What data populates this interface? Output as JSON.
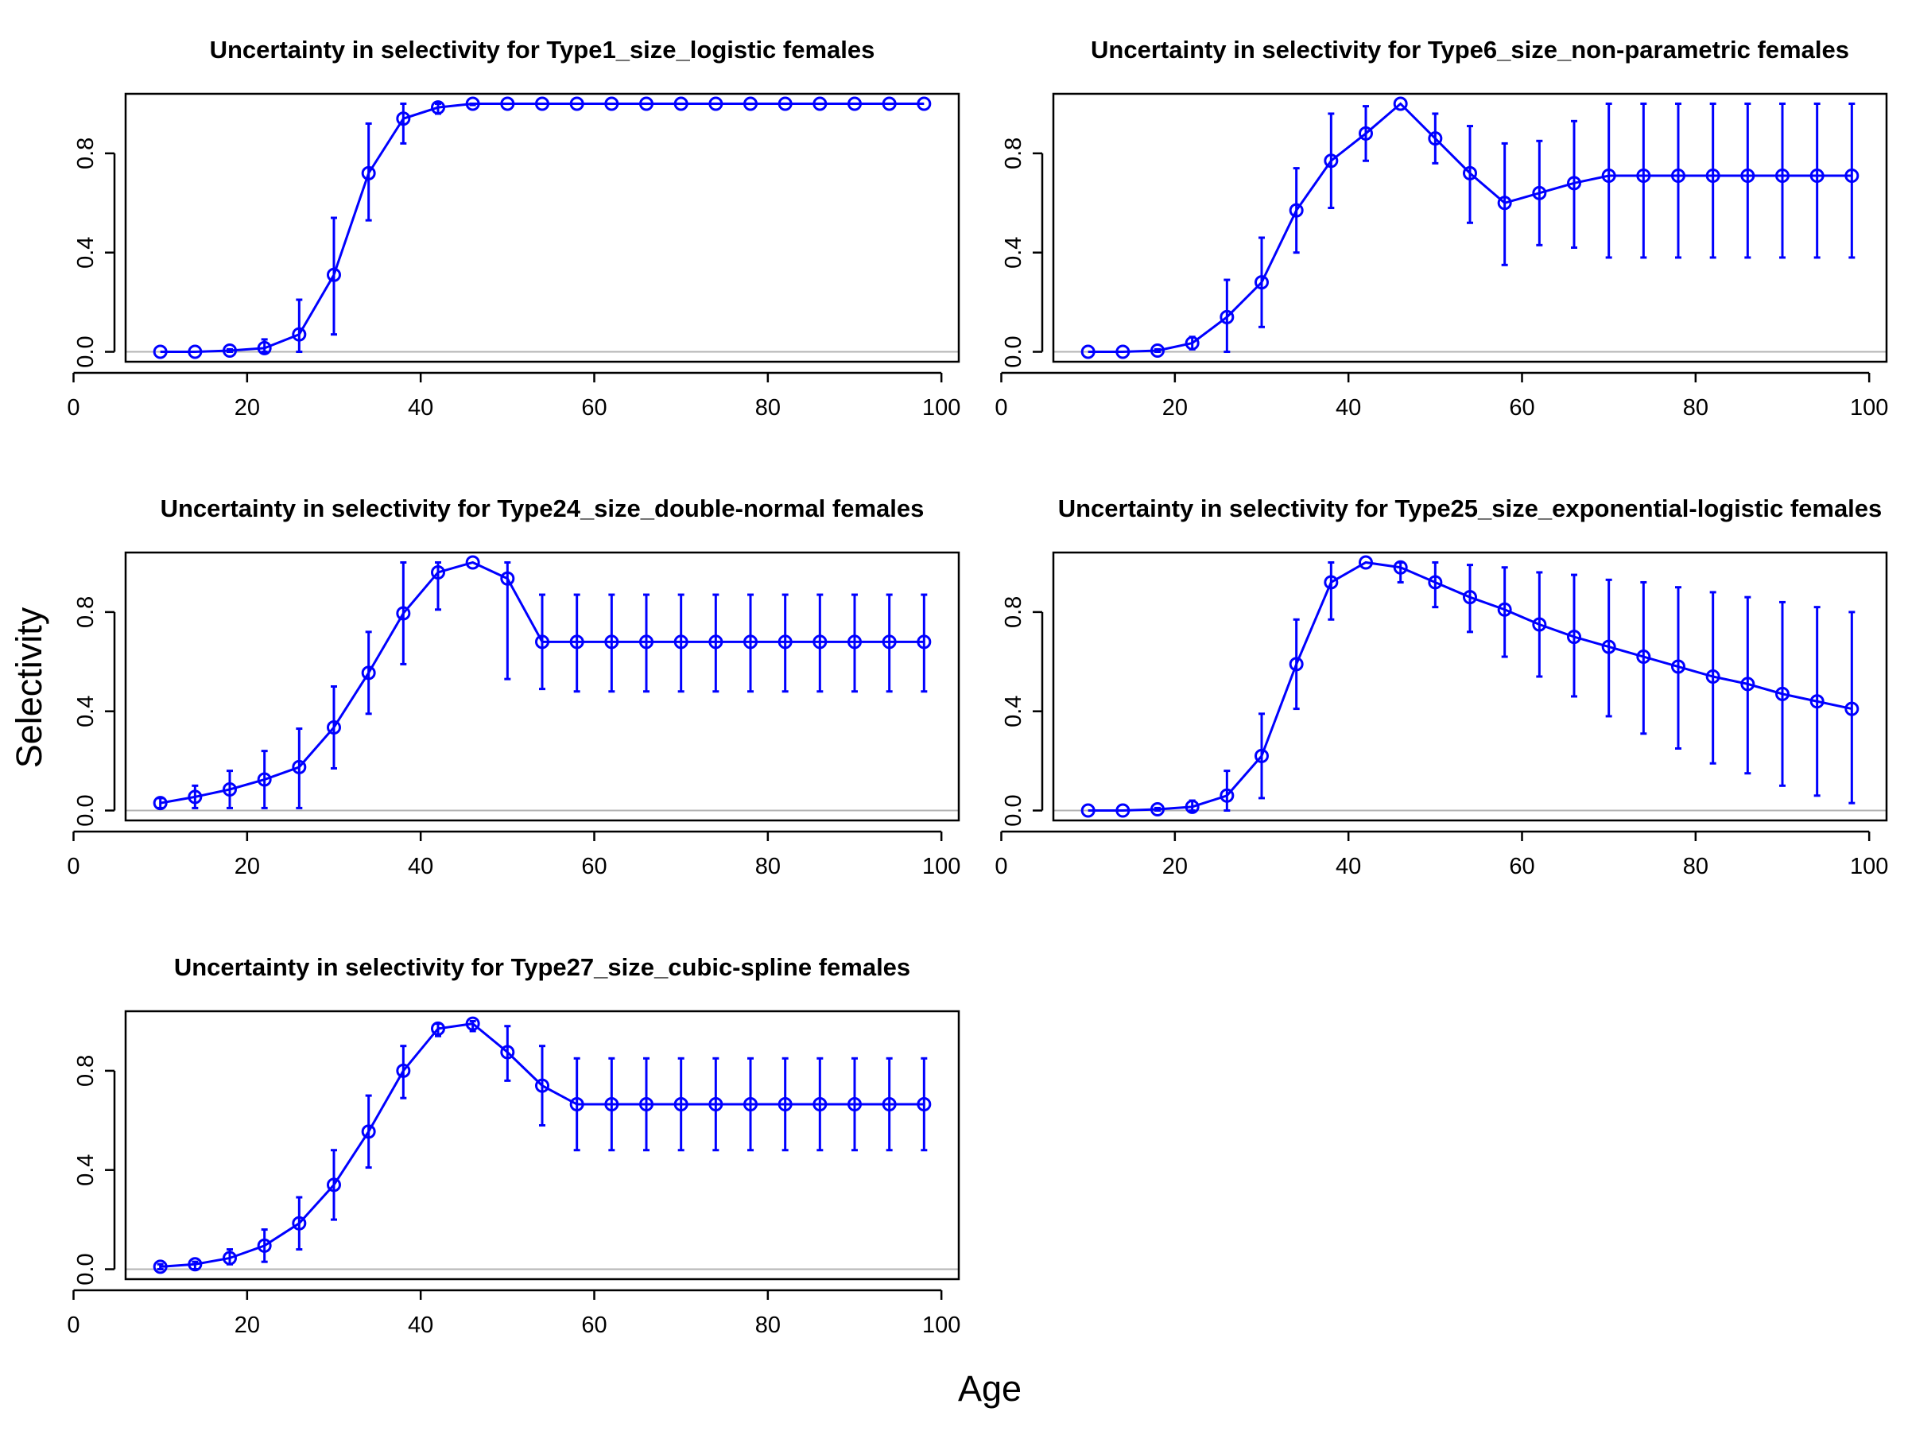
{
  "xlabel": "Age",
  "ylabel": "Selectivity",
  "line_color": "#0000ff",
  "reference_line_color": "#b3b3b3",
  "chart_data": [
    {
      "type": "line",
      "title": "Uncertainty in selectivity for Type1_size_logistic females",
      "xlim": [
        0,
        100
      ],
      "ylim": [
        0,
        1
      ],
      "x_ticks": [
        0,
        20,
        40,
        60,
        80,
        100
      ],
      "y_ticks": [
        0.0,
        0.4,
        0.8
      ],
      "y_tick_labels": [
        "0.0",
        "0.4",
        "0.8"
      ],
      "grid": false,
      "x": [
        10,
        14,
        18,
        22,
        26,
        30,
        34,
        38,
        42,
        46,
        50,
        54,
        58,
        62,
        66,
        70,
        74,
        78,
        82,
        86,
        90,
        94,
        98
      ],
      "values": [
        0.0,
        0.0,
        0.005,
        0.015,
        0.07,
        0.31,
        0.72,
        0.94,
        0.985,
        1.0,
        1.0,
        1.0,
        1.0,
        1.0,
        1.0,
        1.0,
        1.0,
        1.0,
        1.0,
        1.0,
        1.0,
        1.0,
        1.0
      ],
      "lower": [
        0.0,
        0.0,
        0.0,
        0.0,
        0.0,
        0.07,
        0.53,
        0.84,
        0.96,
        0.995,
        1.0,
        1.0,
        1.0,
        1.0,
        1.0,
        1.0,
        1.0,
        1.0,
        1.0,
        1.0,
        1.0,
        1.0,
        1.0
      ],
      "upper": [
        0.0,
        0.0,
        0.01,
        0.05,
        0.21,
        0.54,
        0.92,
        1.0,
        1.0,
        1.0,
        1.0,
        1.0,
        1.0,
        1.0,
        1.0,
        1.0,
        1.0,
        1.0,
        1.0,
        1.0,
        1.0,
        1.0,
        1.0
      ]
    },
    {
      "type": "line",
      "title": "Uncertainty in selectivity for Type6_size_non-parametric females",
      "xlim": [
        0,
        100
      ],
      "ylim": [
        0,
        1
      ],
      "x_ticks": [
        0,
        20,
        40,
        60,
        80,
        100
      ],
      "y_ticks": [
        0.0,
        0.4,
        0.8
      ],
      "y_tick_labels": [
        "0.0",
        "0.4",
        "0.8"
      ],
      "grid": false,
      "x": [
        10,
        14,
        18,
        22,
        26,
        30,
        34,
        38,
        42,
        46,
        50,
        54,
        58,
        62,
        66,
        70,
        74,
        78,
        82,
        86,
        90,
        94,
        98
      ],
      "values": [
        0.0,
        0.0,
        0.005,
        0.035,
        0.14,
        0.28,
        0.57,
        0.77,
        0.88,
        1.0,
        0.86,
        0.72,
        0.6,
        0.64,
        0.68,
        0.71,
        0.71,
        0.71,
        0.71,
        0.71,
        0.71,
        0.71,
        0.71
      ],
      "lower": [
        0.0,
        0.0,
        0.0,
        0.01,
        0.0,
        0.1,
        0.4,
        0.58,
        0.77,
        1.0,
        0.76,
        0.52,
        0.35,
        0.43,
        0.42,
        0.38,
        0.38,
        0.38,
        0.38,
        0.38,
        0.38,
        0.38,
        0.38
      ],
      "upper": [
        0.0,
        0.0,
        0.01,
        0.06,
        0.29,
        0.46,
        0.74,
        0.96,
        0.99,
        1.0,
        0.96,
        0.91,
        0.84,
        0.85,
        0.93,
        1.0,
        1.0,
        1.0,
        1.0,
        1.0,
        1.0,
        1.0,
        1.0
      ]
    },
    {
      "type": "line",
      "title": "Uncertainty in selectivity for Type24_size_double-normal females",
      "xlim": [
        0,
        100
      ],
      "ylim": [
        0,
        1
      ],
      "x_ticks": [
        0,
        20,
        40,
        60,
        80,
        100
      ],
      "y_ticks": [
        0.0,
        0.4,
        0.8
      ],
      "y_tick_labels": [
        "0.0",
        "0.4",
        "0.8"
      ],
      "grid": false,
      "x": [
        10,
        14,
        18,
        22,
        26,
        30,
        34,
        38,
        42,
        46,
        50,
        54,
        58,
        62,
        66,
        70,
        74,
        78,
        82,
        86,
        90,
        94,
        98
      ],
      "values": [
        0.03,
        0.055,
        0.085,
        0.125,
        0.175,
        0.335,
        0.555,
        0.795,
        0.96,
        1.0,
        0.935,
        0.68,
        0.68,
        0.68,
        0.68,
        0.68,
        0.68,
        0.68,
        0.68,
        0.68,
        0.68,
        0.68,
        0.68
      ],
      "lower": [
        0.01,
        0.01,
        0.01,
        0.01,
        0.01,
        0.17,
        0.39,
        0.59,
        0.81,
        1.0,
        0.53,
        0.49,
        0.48,
        0.48,
        0.48,
        0.48,
        0.48,
        0.48,
        0.48,
        0.48,
        0.48,
        0.48,
        0.48
      ],
      "upper": [
        0.05,
        0.1,
        0.16,
        0.24,
        0.33,
        0.5,
        0.72,
        1.0,
        1.0,
        1.0,
        1.0,
        0.87,
        0.87,
        0.87,
        0.87,
        0.87,
        0.87,
        0.87,
        0.87,
        0.87,
        0.87,
        0.87,
        0.87
      ]
    },
    {
      "type": "line",
      "title": "Uncertainty in selectivity for Type25_size_exponential-logistic females",
      "xlim": [
        0,
        100
      ],
      "ylim": [
        0,
        1
      ],
      "x_ticks": [
        0,
        20,
        40,
        60,
        80,
        100
      ],
      "y_ticks": [
        0.0,
        0.4,
        0.8
      ],
      "y_tick_labels": [
        "0.0",
        "0.4",
        "0.8"
      ],
      "grid": false,
      "x": [
        10,
        14,
        18,
        22,
        26,
        30,
        34,
        38,
        42,
        46,
        50,
        54,
        58,
        62,
        66,
        70,
        74,
        78,
        82,
        86,
        90,
        94,
        98
      ],
      "values": [
        0.0,
        0.0,
        0.005,
        0.015,
        0.06,
        0.22,
        0.59,
        0.92,
        1.0,
        0.98,
        0.92,
        0.86,
        0.81,
        0.75,
        0.7,
        0.66,
        0.62,
        0.58,
        0.54,
        0.51,
        0.47,
        0.44,
        0.41
      ],
      "lower": [
        0.0,
        0.0,
        0.0,
        0.0,
        0.0,
        0.05,
        0.41,
        0.77,
        1.0,
        0.92,
        0.82,
        0.72,
        0.62,
        0.54,
        0.46,
        0.38,
        0.31,
        0.25,
        0.19,
        0.15,
        0.1,
        0.06,
        0.03
      ],
      "upper": [
        0.0,
        0.0,
        0.01,
        0.04,
        0.16,
        0.39,
        0.77,
        1.0,
        1.0,
        1.0,
        1.0,
        0.99,
        0.98,
        0.96,
        0.95,
        0.93,
        0.92,
        0.9,
        0.88,
        0.86,
        0.84,
        0.82,
        0.8
      ]
    },
    {
      "type": "line",
      "title": "Uncertainty in selectivity for Type27_size_cubic-spline females",
      "xlim": [
        0,
        100
      ],
      "ylim": [
        0,
        1
      ],
      "x_ticks": [
        0,
        20,
        40,
        60,
        80,
        100
      ],
      "y_ticks": [
        0.0,
        0.4,
        0.8
      ],
      "y_tick_labels": [
        "0.0",
        "0.4",
        "0.8"
      ],
      "grid": false,
      "x": [
        10,
        14,
        18,
        22,
        26,
        30,
        34,
        38,
        42,
        46,
        50,
        54,
        58,
        62,
        66,
        70,
        74,
        78,
        82,
        86,
        90,
        94,
        98
      ],
      "values": [
        0.01,
        0.02,
        0.045,
        0.095,
        0.185,
        0.34,
        0.555,
        0.8,
        0.97,
        0.99,
        0.875,
        0.74,
        0.665,
        0.665,
        0.665,
        0.665,
        0.665,
        0.665,
        0.665,
        0.665,
        0.665,
        0.665,
        0.665
      ],
      "lower": [
        0.0,
        0.0,
        0.02,
        0.03,
        0.08,
        0.2,
        0.41,
        0.69,
        0.94,
        0.96,
        0.76,
        0.58,
        0.48,
        0.48,
        0.48,
        0.48,
        0.48,
        0.48,
        0.48,
        0.48,
        0.48,
        0.48,
        0.48
      ],
      "upper": [
        0.02,
        0.03,
        0.08,
        0.16,
        0.29,
        0.48,
        0.7,
        0.9,
        0.99,
        1.0,
        0.98,
        0.9,
        0.85,
        0.85,
        0.85,
        0.85,
        0.85,
        0.85,
        0.85,
        0.85,
        0.85,
        0.85,
        0.85
      ]
    }
  ]
}
